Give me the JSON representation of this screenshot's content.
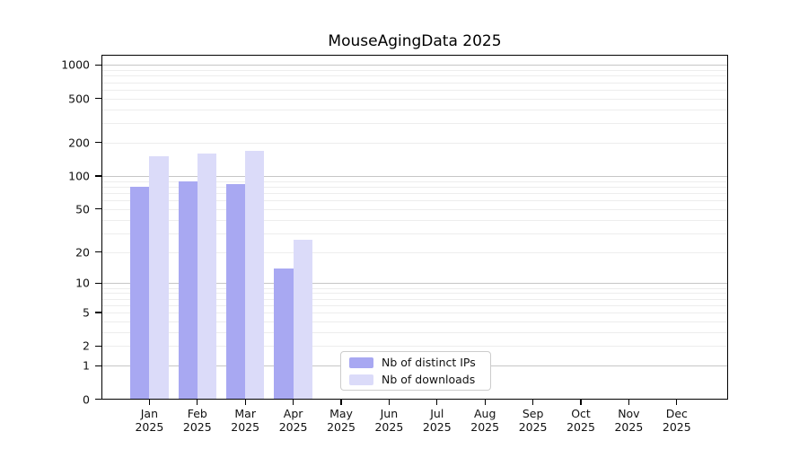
{
  "title": "MouseAgingData 2025",
  "colors": {
    "bar_ips": "#a8a8f2",
    "bar_downloads": "#dbdbf9",
    "grid_major": "#c6c6c6",
    "grid_minor": "#ededed",
    "axis": "#000000",
    "legend_border": "#cccccc",
    "text": "#111111"
  },
  "legend": {
    "items": [
      {
        "label": "Nb of distinct IPs",
        "color_key": "bar_ips"
      },
      {
        "label": "Nb of downloads",
        "color_key": "bar_downloads"
      }
    ]
  },
  "y_axis": {
    "scale": "log10(value+1)",
    "ticks": [
      {
        "label": "1000",
        "value": 1000
      },
      {
        "label": "500",
        "value": 500
      },
      {
        "label": "200",
        "value": 200
      },
      {
        "label": "100",
        "value": 100
      },
      {
        "label": "50",
        "value": 50
      },
      {
        "label": "20",
        "value": 20
      },
      {
        "label": "10",
        "value": 10
      },
      {
        "label": "5",
        "value": 5
      },
      {
        "label": "2",
        "value": 2
      },
      {
        "label": "1",
        "value": 1
      },
      {
        "label": "0",
        "value": 0
      }
    ]
  },
  "x_axis": {
    "ticks": [
      {
        "line1": "Jan",
        "line2": "2025"
      },
      {
        "line1": "Feb",
        "line2": "2025"
      },
      {
        "line1": "Mar",
        "line2": "2025"
      },
      {
        "line1": "Apr",
        "line2": "2025"
      },
      {
        "line1": "May",
        "line2": "2025"
      },
      {
        "line1": "Jun",
        "line2": "2025"
      },
      {
        "line1": "Jul",
        "line2": "2025"
      },
      {
        "line1": "Aug",
        "line2": "2025"
      },
      {
        "line1": "Sep",
        "line2": "2025"
      },
      {
        "line1": "Oct",
        "line2": "2025"
      },
      {
        "line1": "Nov",
        "line2": "2025"
      },
      {
        "line1": "Dec",
        "line2": "2025"
      }
    ]
  },
  "chart_data": {
    "type": "bar",
    "title": "MouseAgingData 2025",
    "categories": [
      "Jan 2025",
      "Feb 2025",
      "Mar 2025",
      "Apr 2025",
      "May 2025",
      "Jun 2025",
      "Jul 2025",
      "Aug 2025",
      "Sep 2025",
      "Oct 2025",
      "Nov 2025",
      "Dec 2025"
    ],
    "series": [
      {
        "name": "Nb of distinct IPs",
        "values": [
          80,
          90,
          84,
          14,
          0,
          0,
          0,
          0,
          0,
          0,
          0,
          0
        ]
      },
      {
        "name": "Nb of downloads",
        "values": [
          150,
          160,
          168,
          26,
          0,
          0,
          0,
          0,
          0,
          0,
          0,
          0
        ]
      }
    ],
    "xlabel": "",
    "ylabel": "",
    "yscale": "log10(value+1)",
    "ylim": [
      0,
      1260
    ],
    "y_tick_values": [
      1000,
      500,
      200,
      100,
      50,
      20,
      10,
      5,
      2,
      1,
      0
    ],
    "grid": true,
    "legend_position": "lower center"
  }
}
